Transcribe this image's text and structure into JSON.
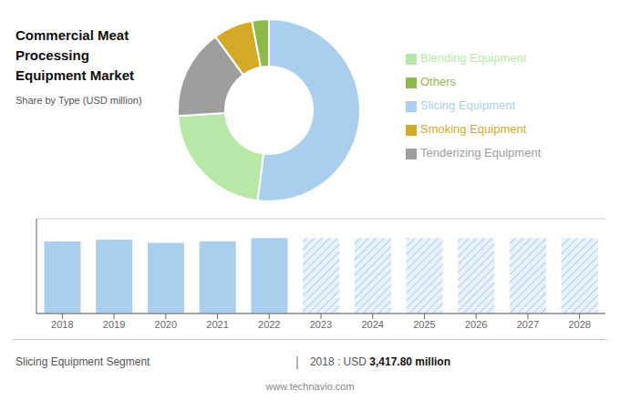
{
  "chart_data": [
    {
      "type": "pie",
      "title": "Commercial Meat Processing\nEquipment Market",
      "subtitle": "Share by Type (USD million)",
      "categories": [
        "Slicing Equipment",
        "Blending Equipment",
        "Tenderizing Equipment",
        "Smoking Equipment",
        "Others"
      ],
      "values": [
        52,
        22,
        16,
        7,
        3
      ],
      "colors": [
        "#aacfee",
        "#b8e8a8",
        "#9e9e9e",
        "#d4a928",
        "#8db84a"
      ],
      "legend": "right"
    },
    {
      "type": "bar",
      "categories": [
        "2018",
        "2019",
        "2020",
        "2021",
        "2022",
        "2023",
        "2024",
        "2025",
        "2026",
        "2027",
        "2028"
      ],
      "series": [
        {
          "color": "#aacfee",
          "values": [
            3417.8,
            3510,
            3350,
            3430,
            3580,
            null,
            null,
            null,
            null,
            null,
            null
          ]
        },
        {
          "color": "#aacfee",
          "line_style": "hatched",
          "values": [
            null,
            null,
            null,
            null,
            null,
            3580,
            3580,
            3580,
            3580,
            3580,
            3580
          ]
        }
      ],
      "ylim": [
        0,
        4500
      ],
      "yticks": [
        0,
        1000,
        2000,
        3000,
        4000
      ],
      "grid": true,
      "tick_labels": "x",
      "annotations": [
        "Slicing Equipment Segment",
        "|",
        "2018 : USD ",
        "3,417.80 million",
        "www.technavio.com"
      ]
    }
  ]
}
